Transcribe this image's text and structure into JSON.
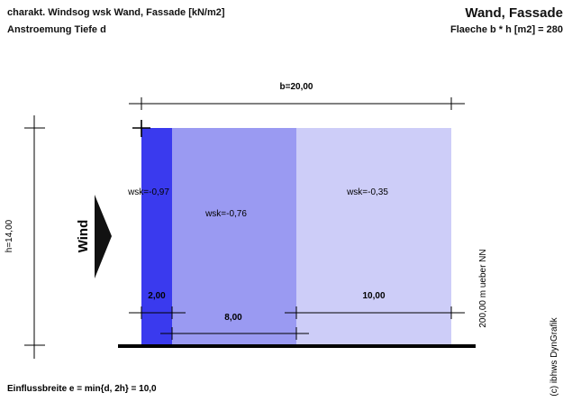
{
  "header": {
    "title_line1": "charakt. Windsog wsk Wand, Fassade [kN/m2]",
    "title_line2": "Anstroemung Tiefe d",
    "right_title": "Wand, Fassade",
    "right_subtitle": "Flaeche b * h [m2] = 280"
  },
  "dimensions": {
    "width_label": "b=20,00",
    "height_label": "h=14,00",
    "height_above_ground": "200,00 m ueber NN"
  },
  "wind_label": "Wind",
  "zones": [
    {
      "label": "wsk=-0,97",
      "width_label": "2,00",
      "color": "#3a3aee"
    },
    {
      "label": "wsk=-0,76",
      "width_label": "8,00",
      "color": "#9a9af2"
    },
    {
      "label": "wsk=-0,35",
      "width_label": "10,00",
      "color": "#cdcdf8"
    }
  ],
  "footer": {
    "influence": "Einflussbreite e = min{d, 2h} = 10,0",
    "copyright": "(c) ibhws DynGrafik"
  }
}
